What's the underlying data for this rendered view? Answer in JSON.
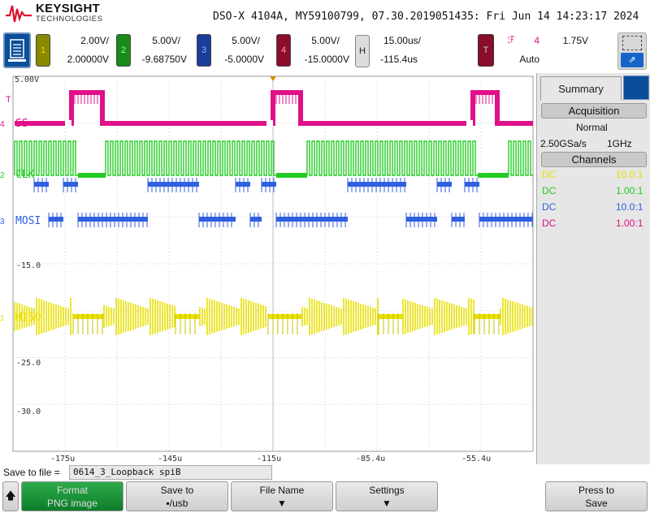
{
  "header": {
    "brand": "KEYSIGHT",
    "brand_sub": "TECHNOLOGIES",
    "title": "DSO-X 4104A, MY59100799, 07.30.2019051435: Fri Jun 14 14:23:17 2024"
  },
  "channels": [
    {
      "num": "1",
      "scale": "2.00V/",
      "offset": "2.00000V",
      "color": "#e8e000",
      "chip_bg": "#8a8a00"
    },
    {
      "num": "2",
      "scale": "5.00V/",
      "offset": "-9.68750V",
      "color": "#22cc22",
      "chip_bg": "#1a8a1a"
    },
    {
      "num": "3",
      "scale": "5.00V/",
      "offset": "-5.0000V",
      "color": "#3060e0",
      "chip_bg": "#1a3c9a"
    },
    {
      "num": "4",
      "scale": "5.00V/",
      "offset": "-15.0000V",
      "color": "#e0108a",
      "chip_bg": "#8b0d2a"
    }
  ],
  "horizontal": {
    "label": "H",
    "scale": "15.00us/",
    "position": "-115.4us"
  },
  "trigger": {
    "label": "T",
    "edge_symbol": "ℱ",
    "source": "4",
    "level": "1.75V",
    "mode": "Auto"
  },
  "screen": {
    "top_voltage": "5.00V",
    "y_labels": [
      "-15.0",
      "-25.0",
      "-30.0"
    ],
    "x_labels": [
      "-175u",
      "-145u",
      "-115u",
      "-85.4u",
      "-55.4u"
    ],
    "trace_labels": {
      "ss": "SS",
      "clk": "CLK",
      "mosi": "MOSI",
      "miso": "MISO"
    },
    "marker_t": "T",
    "marker_4": "4",
    "marker_2": "2",
    "marker_3": "3",
    "marker_1": "1"
  },
  "sidebar": {
    "tab": "Summary",
    "acquisition_header": "Acquisition",
    "acq_mode": "Normal",
    "sample_rate": "2.50GSa/s",
    "bandwidth": "1GHz",
    "channels_header": "Channels",
    "channel_rows": [
      {
        "coupling": "DC",
        "probe": "10.0:1",
        "color": "#e8e000"
      },
      {
        "coupling": "DC",
        "probe": "1.00:1",
        "color": "#22cc22"
      },
      {
        "coupling": "DC",
        "probe": "10.0:1",
        "color": "#3060e0"
      },
      {
        "coupling": "DC",
        "probe": "1.00:1",
        "color": "#e0108a"
      }
    ]
  },
  "bottom": {
    "save_to_file_label": "Save to file =",
    "filename": "0614_3_Loopback spiB",
    "format_label": "Format",
    "format_value": "PNG image",
    "save_to_label": "Save to",
    "save_to_value": "▪/usb",
    "file_name_label": "File Name",
    "settings_label": "Settings",
    "press_to_label": "Press to",
    "press_to_value": "Save"
  }
}
